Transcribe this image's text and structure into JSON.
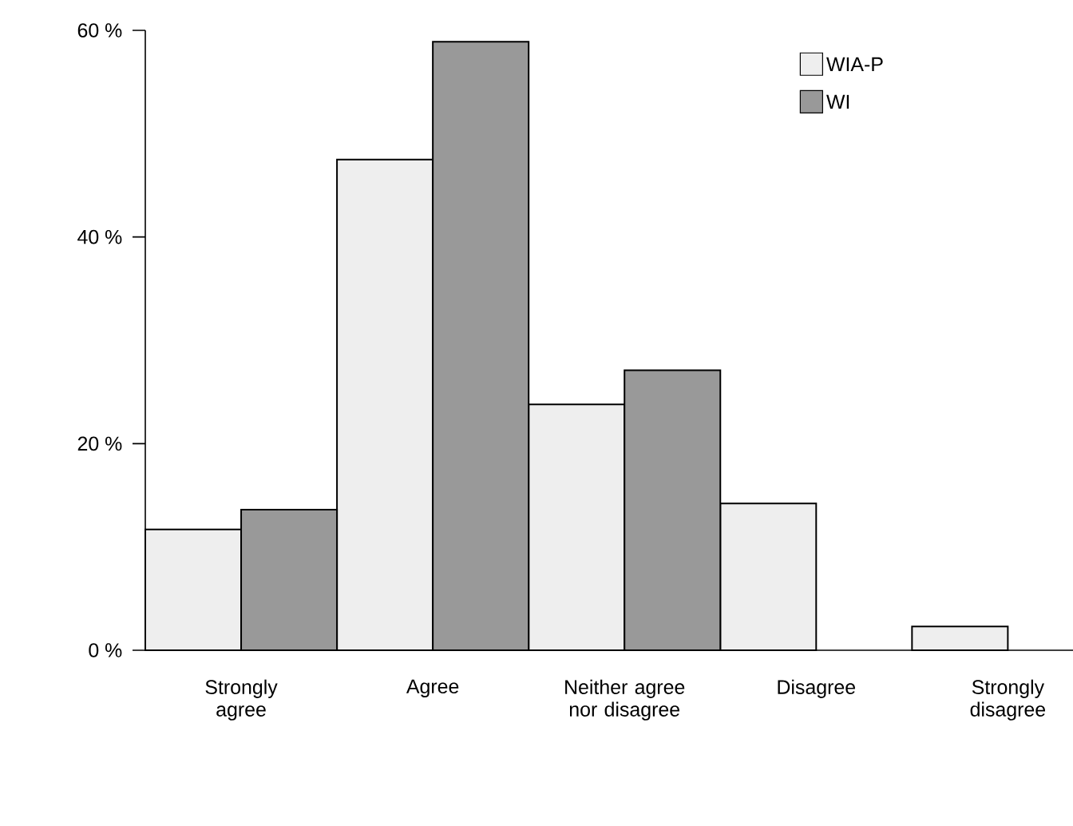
{
  "chart_data": {
    "type": "bar",
    "categories": [
      "Strongly agree",
      "Agree",
      "Neither agree nor disagree",
      "Disagree",
      "Strongly disagree"
    ],
    "series": [
      {
        "name": "WIA-P",
        "color": "#eeeeee",
        "values": [
          11.7,
          47.5,
          23.8,
          14.2,
          2.3
        ]
      },
      {
        "name": "WI",
        "color": "#999999",
        "values": [
          13.6,
          58.9,
          27.1,
          null,
          null
        ]
      }
    ],
    "ylim": [
      0,
      60
    ],
    "yticks": [
      {
        "value": 0,
        "label": "0 %"
      },
      {
        "value": 20,
        "label": "20 %"
      },
      {
        "value": 40,
        "label": "40 %"
      },
      {
        "value": 60,
        "label": "60 %"
      }
    ],
    "legend": "top right"
  }
}
